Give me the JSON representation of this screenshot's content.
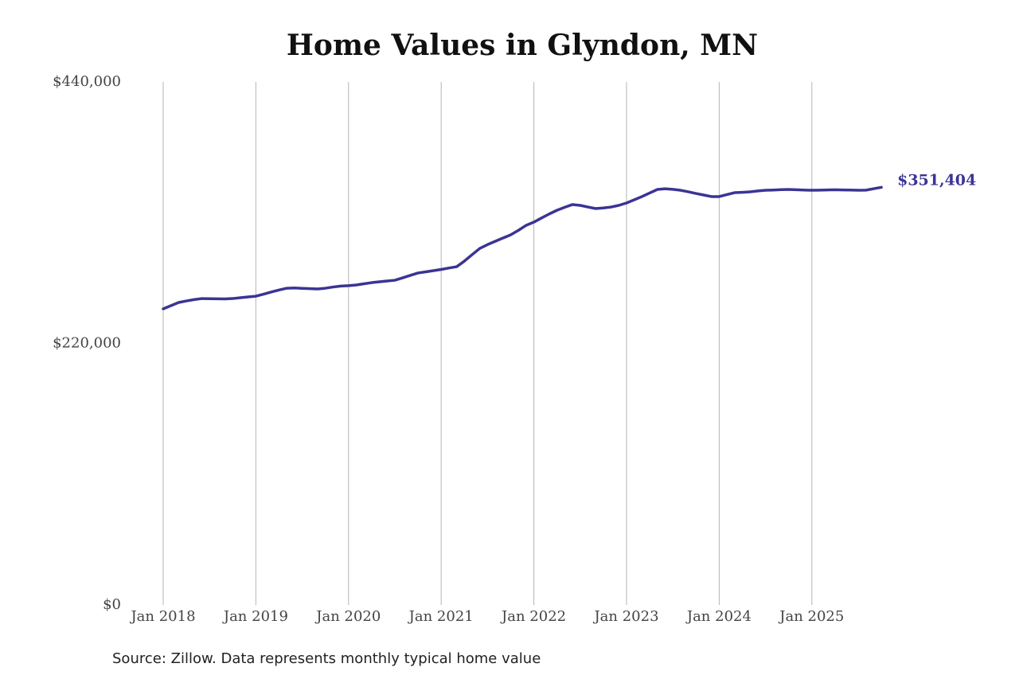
{
  "chart_data": {
    "type": "line",
    "title": "Home Values in Glyndon, MN",
    "source": "Source: Zillow. Data represents monthly typical home value",
    "x": [
      "2018-01",
      "2018-02",
      "2018-03",
      "2018-04",
      "2018-05",
      "2018-06",
      "2018-07",
      "2018-08",
      "2018-09",
      "2018-10",
      "2018-11",
      "2018-12",
      "2019-01",
      "2019-02",
      "2019-03",
      "2019-04",
      "2019-05",
      "2019-06",
      "2019-07",
      "2019-08",
      "2019-09",
      "2019-10",
      "2019-11",
      "2019-12",
      "2020-01",
      "2020-02",
      "2020-03",
      "2020-04",
      "2020-05",
      "2020-06",
      "2020-07",
      "2020-08",
      "2020-09",
      "2020-10",
      "2020-11",
      "2020-12",
      "2021-01",
      "2021-02",
      "2021-03",
      "2021-04",
      "2021-05",
      "2021-06",
      "2021-07",
      "2021-08",
      "2021-09",
      "2021-10",
      "2021-11",
      "2021-12",
      "2022-01",
      "2022-02",
      "2022-03",
      "2022-04",
      "2022-05",
      "2022-06",
      "2022-07",
      "2022-08",
      "2022-09",
      "2022-10",
      "2022-11",
      "2022-12",
      "2023-01",
      "2023-02",
      "2023-03",
      "2023-04",
      "2023-05",
      "2023-06",
      "2023-07",
      "2023-08",
      "2023-09",
      "2023-10",
      "2023-11",
      "2023-12",
      "2024-01",
      "2024-02",
      "2024-03",
      "2024-04",
      "2024-05",
      "2024-06",
      "2024-07",
      "2024-08",
      "2024-09",
      "2024-10",
      "2024-11",
      "2024-12",
      "2025-01",
      "2025-02",
      "2025-03",
      "2025-04",
      "2025-05",
      "2025-06",
      "2025-07",
      "2025-08",
      "2025-09",
      "2025-10"
    ],
    "series": [
      {
        "name": "Home value",
        "color": "#3b3494",
        "values": [
          249100,
          251800,
          254500,
          255800,
          256900,
          257800,
          257700,
          257600,
          257500,
          257800,
          258500,
          259200,
          259800,
          261500,
          263300,
          265000,
          266500,
          266700,
          266400,
          266100,
          265900,
          266500,
          267500,
          268300,
          268600,
          269200,
          270200,
          271200,
          271900,
          272600,
          273200,
          275200,
          277300,
          279300,
          280300,
          281300,
          282300,
          283500,
          284600,
          289300,
          294700,
          300000,
          303200,
          306000,
          308700,
          311400,
          315200,
          319400,
          322100,
          325600,
          329000,
          332100,
          334600,
          336900,
          336200,
          334800,
          333500,
          334000,
          334800,
          336200,
          338200,
          340900,
          343600,
          346600,
          349600,
          350200,
          349700,
          348900,
          347600,
          346200,
          344900,
          343600,
          343600,
          345300,
          346900,
          347200,
          347600,
          348300,
          348900,
          349100,
          349400,
          349600,
          349300,
          349100,
          348900,
          349000,
          349200,
          349300,
          349200,
          349100,
          348900,
          349000,
          350200,
          351404
        ],
        "value_labels": [
          null,
          null,
          null,
          null,
          null,
          null,
          null,
          null,
          null,
          null,
          null,
          null,
          null,
          null,
          null,
          null,
          null,
          null,
          null,
          null,
          null,
          null,
          null,
          null,
          null,
          null,
          null,
          null,
          null,
          null,
          null,
          null,
          null,
          null,
          null,
          null,
          null,
          null,
          null,
          null,
          null,
          null,
          null,
          null,
          null,
          null,
          null,
          null,
          null,
          null,
          null,
          null,
          null,
          null,
          null,
          null,
          null,
          null,
          null,
          null,
          null,
          null,
          null,
          null,
          null,
          null,
          null,
          null,
          null,
          null,
          null,
          null,
          null,
          null,
          null,
          null,
          null,
          null,
          null,
          null,
          null,
          null,
          null,
          null,
          null,
          null,
          null,
          null,
          null,
          null,
          null,
          null,
          null,
          "$351,404"
        ]
      }
    ],
    "ylim": [
      0,
      440000
    ],
    "yticks": [
      {
        "value": 0,
        "label": "$0"
      },
      {
        "value": 220000,
        "label": "$220,000"
      },
      {
        "value": 440000,
        "label": "$440,000"
      }
    ],
    "xticks": [
      {
        "value": "2018-01",
        "label": "Jan 2018"
      },
      {
        "value": "2019-01",
        "label": "Jan 2019"
      },
      {
        "value": "2020-01",
        "label": "Jan 2020"
      },
      {
        "value": "2021-01",
        "label": "Jan 2021"
      },
      {
        "value": "2022-01",
        "label": "Jan 2022"
      },
      {
        "value": "2023-01",
        "label": "Jan 2023"
      },
      {
        "value": "2024-01",
        "label": "Jan 2024"
      },
      {
        "value": "2025-01",
        "label": "Jan 2025"
      }
    ],
    "grid": "x"
  }
}
